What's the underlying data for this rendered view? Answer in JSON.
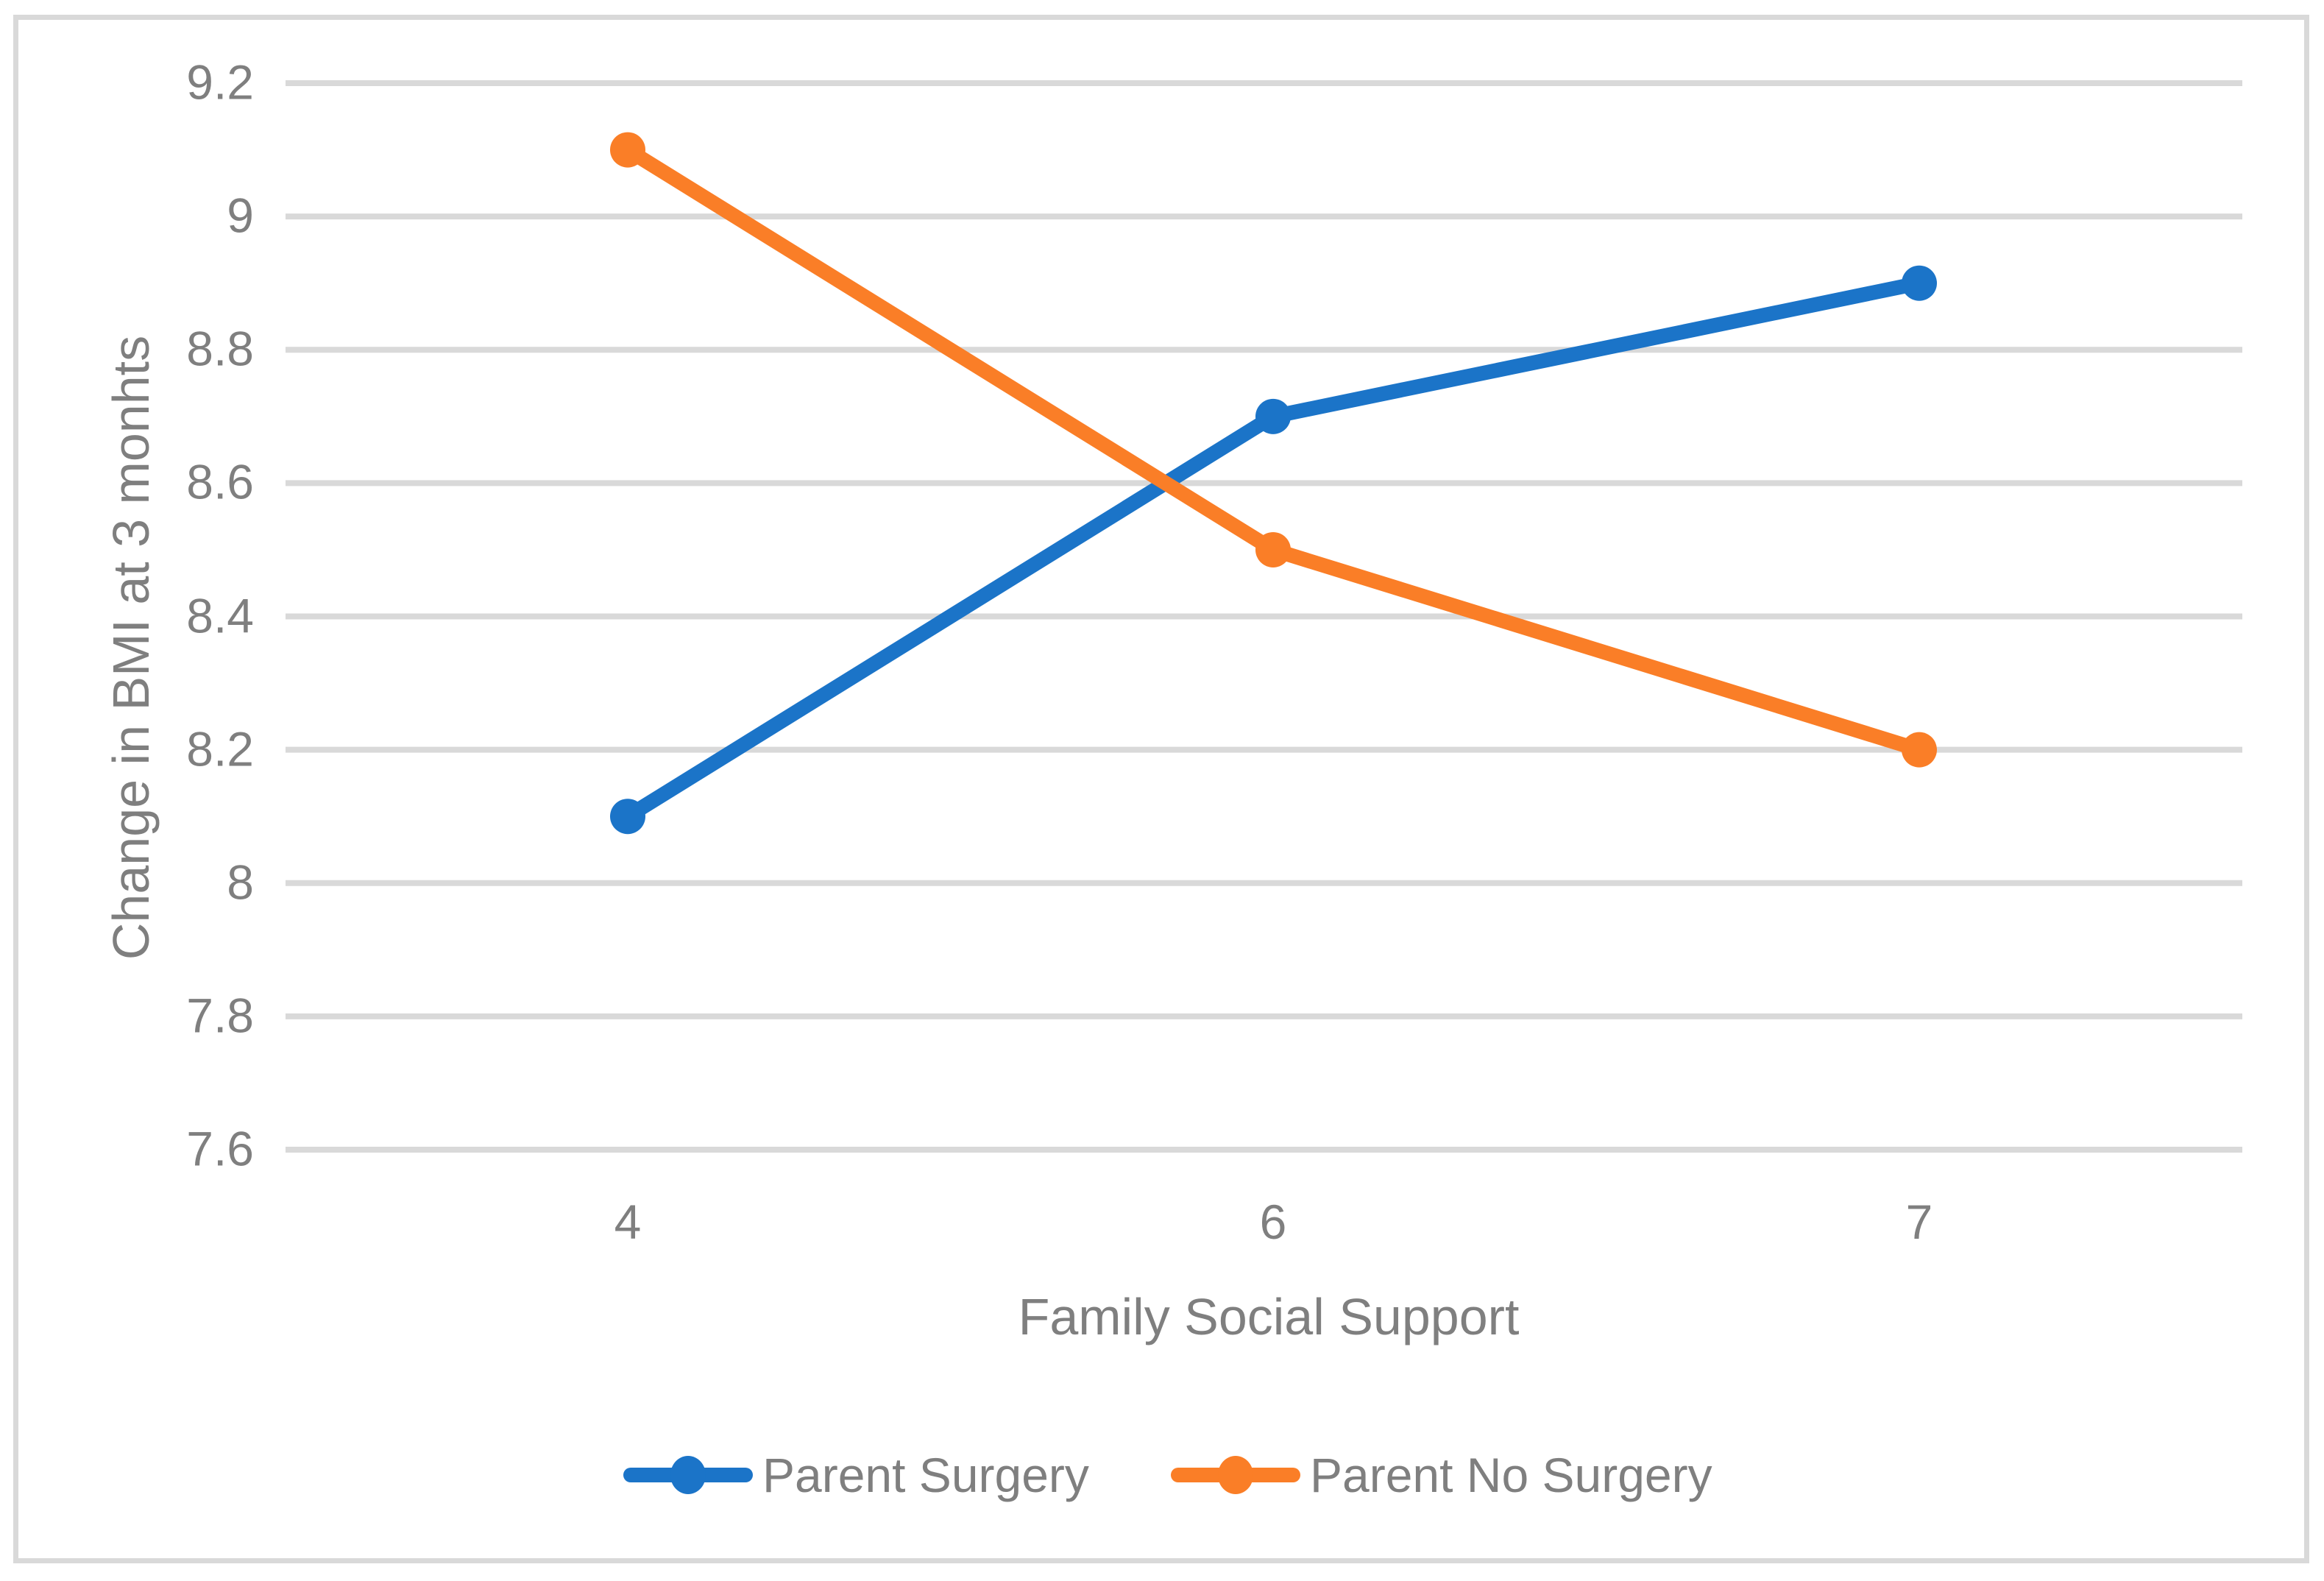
{
  "chart_data": {
    "type": "line",
    "title": "",
    "xlabel": "Family Social Support",
    "ylabel": "Change in BMI at 3 monhts",
    "categories": [
      "4",
      "6",
      "7"
    ],
    "series": [
      {
        "name": "Parent Surgery",
        "values": [
          8.1,
          8.7,
          8.9
        ],
        "color": "#1B74C8"
      },
      {
        "name": "Parent No Surgery",
        "values": [
          9.1,
          8.5,
          8.2
        ],
        "color": "#FA7E27"
      }
    ],
    "ylim": [
      7.6,
      9.2
    ],
    "y_tick_step": 0.2,
    "y_tick_labels_top_to_bottom": [
      "9.2",
      "9",
      "8.8",
      "8.6",
      "8.4",
      "8.2",
      "8",
      "7.8",
      "7.6"
    ],
    "grid": "horizontal-only",
    "legend_position": "bottom",
    "marker": "circle",
    "colors": {
      "gridline": "#D9D9D9",
      "outer_border": "#D9D9D9",
      "text": "#7F7F7F",
      "background": "#FFFFFF"
    }
  }
}
